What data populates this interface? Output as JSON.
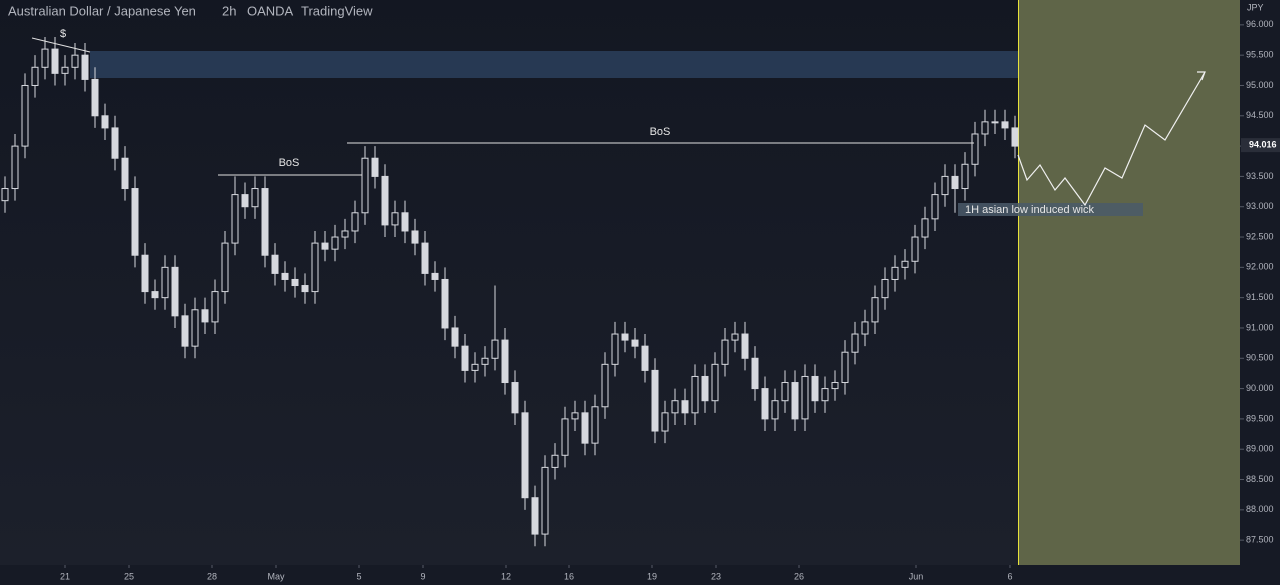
{
  "chart_data": {
    "type": "candlestick",
    "title": {
      "symbol": "Australian Dollar / Japanese Yen",
      "interval": "2h",
      "exchange": "OANDA",
      "source": "TradingView"
    },
    "y_unit": "JPY",
    "color": "#d6d8de",
    "last_price": 94.016,
    "annotations": {
      "liquidity": "$",
      "bos_1": "BoS",
      "bos_2": "BoS",
      "wick_note": "1H asian low induced wick"
    },
    "open": [
      93.1,
      93.3,
      94.0,
      95.0,
      95.3,
      95.6,
      95.2,
      95.3,
      95.5,
      95.1,
      94.5,
      94.3,
      93.8,
      93.3,
      92.2,
      91.6,
      91.5,
      92.0,
      91.2,
      90.7,
      91.3,
      91.1,
      91.6,
      92.4,
      93.2,
      93.0,
      93.3,
      92.2,
      91.9,
      91.8,
      91.7,
      91.6,
      92.4,
      92.3,
      92.5,
      92.6,
      92.9,
      93.8,
      93.5,
      92.7,
      92.9,
      92.6,
      92.4,
      91.9,
      91.8,
      91.0,
      90.7,
      90.3,
      90.4,
      90.5,
      90.8,
      90.1,
      89.6,
      88.2,
      87.6,
      88.7,
      88.9,
      89.5,
      89.6,
      89.1,
      89.7,
      90.4,
      90.9,
      90.8,
      90.7,
      90.3,
      89.3,
      89.6,
      89.8,
      89.6,
      90.2,
      89.8,
      90.4,
      90.8,
      90.9,
      90.5,
      90.0,
      89.5,
      89.8,
      90.1,
      89.5,
      90.2,
      89.8,
      90.0,
      90.1,
      90.6,
      90.9,
      91.1,
      91.5,
      91.8,
      92.0,
      92.1,
      92.5,
      92.8,
      93.2,
      93.5,
      93.3,
      93.7,
      94.2,
      94.4,
      94.4,
      94.3
    ],
    "high": [
      93.5,
      94.2,
      95.2,
      95.5,
      95.8,
      95.8,
      95.5,
      95.7,
      95.7,
      95.3,
      94.7,
      94.5,
      94.0,
      93.5,
      92.4,
      91.8,
      92.2,
      92.2,
      91.4,
      91.5,
      91.5,
      91.8,
      92.6,
      93.5,
      93.4,
      93.5,
      93.5,
      92.4,
      92.1,
      92.0,
      91.9,
      92.6,
      92.6,
      92.7,
      92.8,
      93.1,
      94.0,
      94.0,
      93.7,
      93.1,
      93.1,
      92.8,
      92.6,
      92.1,
      92.0,
      91.2,
      90.9,
      90.6,
      90.7,
      91.7,
      91.0,
      90.3,
      89.8,
      88.4,
      88.9,
      89.1,
      89.7,
      89.8,
      89.8,
      89.9,
      90.6,
      91.1,
      91.1,
      91.0,
      90.9,
      90.5,
      89.8,
      90.0,
      90.0,
      90.4,
      90.4,
      90.6,
      91.0,
      91.1,
      91.1,
      90.7,
      90.2,
      90.0,
      90.3,
      90.3,
      90.4,
      90.4,
      90.2,
      90.3,
      90.8,
      91.1,
      91.3,
      91.7,
      92.0,
      92.2,
      92.3,
      92.7,
      93.0,
      93.4,
      93.7,
      93.7,
      93.9,
      94.4,
      94.6,
      94.6,
      94.6,
      94.5
    ],
    "low": [
      92.9,
      93.1,
      93.8,
      94.8,
      95.1,
      95.0,
      95.0,
      95.1,
      94.9,
      94.3,
      94.1,
      93.6,
      93.1,
      92.0,
      91.4,
      91.3,
      91.3,
      91.0,
      90.5,
      90.5,
      90.9,
      90.9,
      91.4,
      92.2,
      92.8,
      92.8,
      92.0,
      91.7,
      91.6,
      91.5,
      91.4,
      91.4,
      92.1,
      92.1,
      92.3,
      92.4,
      92.7,
      93.3,
      92.5,
      92.5,
      92.4,
      92.2,
      91.7,
      91.6,
      90.8,
      90.5,
      90.1,
      90.1,
      90.2,
      90.3,
      89.9,
      89.4,
      88.0,
      87.4,
      87.4,
      88.5,
      88.7,
      89.3,
      88.9,
      88.9,
      89.5,
      90.2,
      90.6,
      90.5,
      90.1,
      89.1,
      89.1,
      89.4,
      89.4,
      89.4,
      89.6,
      89.6,
      90.2,
      90.6,
      90.3,
      89.8,
      89.3,
      89.3,
      89.6,
      89.3,
      89.3,
      89.6,
      89.6,
      89.8,
      89.9,
      90.4,
      90.7,
      90.9,
      91.3,
      91.6,
      91.8,
      91.9,
      92.3,
      92.6,
      93.0,
      92.9,
      93.1,
      93.5,
      94.0,
      94.2,
      94.1,
      93.8
    ],
    "close": [
      93.3,
      94.0,
      95.0,
      95.3,
      95.6,
      95.2,
      95.3,
      95.5,
      95.1,
      94.5,
      94.3,
      93.8,
      93.3,
      92.2,
      91.6,
      91.5,
      92.0,
      91.2,
      90.7,
      91.3,
      91.1,
      91.6,
      92.4,
      93.2,
      93.0,
      93.3,
      92.2,
      91.9,
      91.8,
      91.7,
      91.6,
      92.4,
      92.3,
      92.5,
      92.6,
      92.9,
      93.8,
      93.5,
      92.7,
      92.9,
      92.6,
      92.4,
      91.9,
      91.8,
      91.0,
      90.7,
      90.3,
      90.4,
      90.5,
      90.8,
      90.1,
      89.6,
      88.2,
      87.6,
      88.7,
      88.9,
      89.5,
      89.6,
      89.1,
      89.7,
      90.4,
      90.9,
      90.8,
      90.7,
      90.3,
      89.3,
      89.6,
      89.8,
      89.6,
      90.2,
      89.8,
      90.4,
      90.8,
      90.9,
      90.5,
      90.0,
      89.5,
      89.8,
      90.1,
      89.5,
      90.2,
      89.8,
      90.0,
      90.1,
      90.6,
      90.9,
      91.1,
      91.5,
      91.8,
      92.0,
      92.1,
      92.5,
      92.8,
      93.2,
      93.5,
      93.3,
      93.7,
      94.2,
      94.4,
      94.4,
      94.3,
      94.0
    ],
    "xlim": [
      0,
      124
    ],
    "xticks": [
      {
        "value": 6.5,
        "label": "21"
      },
      {
        "value": 12.9,
        "label": "25"
      },
      {
        "value": 21.2,
        "label": "28"
      },
      {
        "value": 27.6,
        "label": "May"
      },
      {
        "value": 35.9,
        "label": "5"
      },
      {
        "value": 42.3,
        "label": "9"
      },
      {
        "value": 50.6,
        "label": "12"
      },
      {
        "value": 56.9,
        "label": "16"
      },
      {
        "value": 65.2,
        "label": "19"
      },
      {
        "value": 71.6,
        "label": "23"
      },
      {
        "value": 79.9,
        "label": "26"
      },
      {
        "value": 91.6,
        "label": "Jun"
      },
      {
        "value": 101.0,
        "label": "6"
      }
    ],
    "ylim": [
      87.09,
      96.41
    ],
    "yticks": [
      {
        "value": 87.5,
        "label": "87.500"
      },
      {
        "value": 88,
        "label": "88.000"
      },
      {
        "value": 88.5,
        "label": "88.500"
      },
      {
        "value": 89,
        "label": "89.000"
      },
      {
        "value": 89.5,
        "label": "89.500"
      },
      {
        "value": 90,
        "label": "90.000"
      },
      {
        "value": 90.5,
        "label": "90.500"
      },
      {
        "value": 91,
        "label": "91.000"
      },
      {
        "value": 91.5,
        "label": "91.500"
      },
      {
        "value": 92,
        "label": "92.000"
      },
      {
        "value": 92.5,
        "label": "92.500"
      },
      {
        "value": 93,
        "label": "93.000"
      },
      {
        "value": 93.5,
        "label": "93.500"
      },
      {
        "value": 94,
        "label": "94.000"
      },
      {
        "value": 94.5,
        "label": "94.500"
      },
      {
        "value": 95,
        "label": "95.000"
      },
      {
        "value": 95.5,
        "label": "95.500"
      },
      {
        "value": 96,
        "label": "96.000"
      }
    ],
    "grid": false
  }
}
